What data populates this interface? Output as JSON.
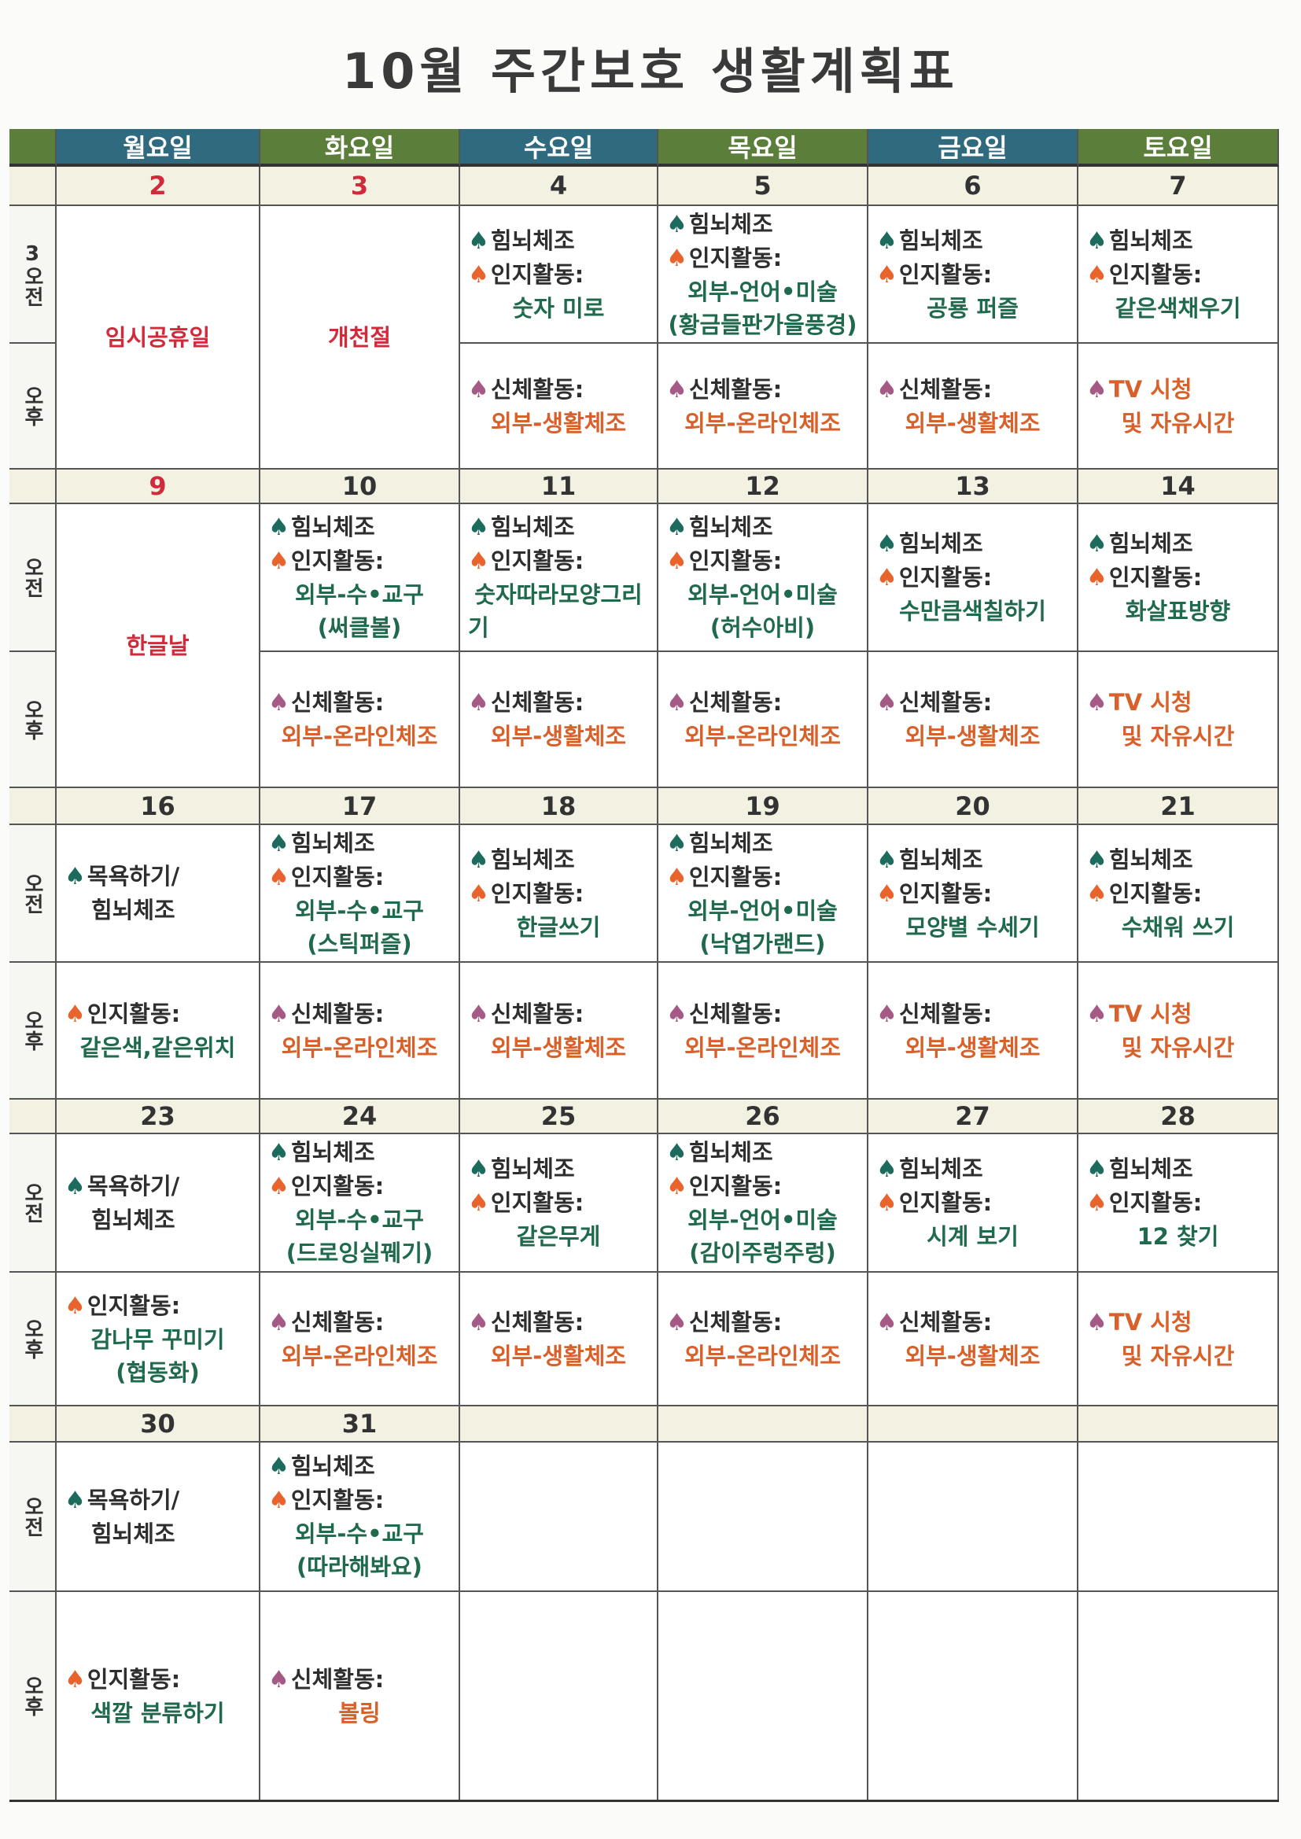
{
  "title": "10월 주간보호 생활계획표",
  "days": [
    {
      "label": "월요일",
      "color": "#2f6a7e"
    },
    {
      "label": "화요일",
      "color": "#5b7e3a"
    },
    {
      "label": "수요일",
      "color": "#2f6a7e"
    },
    {
      "label": "목요일",
      "color": "#5b7e3a"
    },
    {
      "label": "금요일",
      "color": "#2f6a7e"
    },
    {
      "label": "토요일",
      "color": "#5b7e3a"
    }
  ],
  "colors": {
    "header_blue": "#2f6a7e",
    "header_green": "#5b7e3a",
    "date_bg": "#f3f2e2",
    "content_green": "#1f6a4c",
    "content_orange": "#d8602a",
    "holiday_red": "#d12a3a"
  },
  "weeks": [
    {
      "am_label": "3오전",
      "pm_label": "오후",
      "dates": [
        {
          "n": "2",
          "red": true
        },
        {
          "n": "3",
          "red": true
        },
        {
          "n": "4"
        },
        {
          "n": "5"
        },
        {
          "n": "6"
        },
        {
          "n": "7"
        }
      ],
      "holidays": [
        {
          "day": 0,
          "text": "임시공휴일"
        },
        {
          "day": 1,
          "text": "개천절"
        }
      ],
      "am": [
        null,
        null,
        [
          {
            "i": "teal",
            "t": "힘뇌체조",
            "c": "k"
          },
          {
            "i": "orange",
            "t": "인지활동:",
            "c": "k"
          },
          {
            "t": "숫자 미로",
            "c": "g"
          }
        ],
        [
          {
            "i": "teal",
            "t": "힘뇌체조",
            "c": "k"
          },
          {
            "i": "orange",
            "t": "인지활동:",
            "c": "k"
          },
          {
            "t": "외부-언어•미술",
            "c": "g"
          },
          {
            "t": "(황금들판가을풍경)",
            "c": "g"
          }
        ],
        [
          {
            "i": "teal",
            "t": "힘뇌체조",
            "c": "k"
          },
          {
            "i": "orange",
            "t": "인지활동:",
            "c": "k"
          },
          {
            "t": "공룡 퍼즐",
            "c": "g"
          }
        ],
        [
          {
            "i": "teal",
            "t": "힘뇌체조",
            "c": "k"
          },
          {
            "i": "orange",
            "t": "인지활동:",
            "c": "k"
          },
          {
            "t": "같은색채우기",
            "c": "g"
          }
        ]
      ],
      "pm": [
        null,
        null,
        [
          {
            "i": "mauve",
            "t": "신체활동:",
            "c": "k"
          },
          {
            "t": "외부-생활체조",
            "c": "o"
          }
        ],
        [
          {
            "i": "mauve",
            "t": "신체활동:",
            "c": "k"
          },
          {
            "t": "외부-온라인체조",
            "c": "o"
          }
        ],
        [
          {
            "i": "mauve",
            "t": "신체활동:",
            "c": "k"
          },
          {
            "t": "외부-생활체조",
            "c": "o"
          }
        ],
        [
          {
            "i": "mauve",
            "t": "TV 시청",
            "c": "o"
          },
          {
            "t": "및 자유시간",
            "c": "o"
          }
        ]
      ]
    },
    {
      "am_label": "오전",
      "pm_label": "오후",
      "dates": [
        {
          "n": "9",
          "red": true
        },
        {
          "n": "10"
        },
        {
          "n": "11"
        },
        {
          "n": "12"
        },
        {
          "n": "13"
        },
        {
          "n": "14"
        }
      ],
      "holidays": [
        {
          "day": 0,
          "text": "한글날"
        }
      ],
      "am": [
        null,
        [
          {
            "i": "teal",
            "t": "힘뇌체조",
            "c": "k"
          },
          {
            "i": "orange",
            "t": "인지활동:",
            "c": "k"
          },
          {
            "t": "외부-수•교구",
            "c": "g"
          },
          {
            "t": "(써클볼)",
            "c": "g"
          }
        ],
        [
          {
            "i": "teal",
            "t": "힘뇌체조",
            "c": "k"
          },
          {
            "i": "orange",
            "t": "인지활동:",
            "c": "k"
          },
          {
            "t": "숫자따라모양그리",
            "c": "g"
          },
          {
            "t": "기",
            "c": "g",
            "left": true
          }
        ],
        [
          {
            "i": "teal",
            "t": "힘뇌체조",
            "c": "k"
          },
          {
            "i": "orange",
            "t": "인지활동:",
            "c": "k"
          },
          {
            "t": "외부-언어•미술",
            "c": "g"
          },
          {
            "t": "(허수아비)",
            "c": "g"
          }
        ],
        [
          {
            "i": "teal",
            "t": "힘뇌체조",
            "c": "k"
          },
          {
            "i": "orange",
            "t": "인지활동:",
            "c": "k"
          },
          {
            "t": "수만큼색칠하기",
            "c": "g"
          }
        ],
        [
          {
            "i": "teal",
            "t": "힘뇌체조",
            "c": "k"
          },
          {
            "i": "orange",
            "t": "인지활동:",
            "c": "k"
          },
          {
            "t": "화살표방향",
            "c": "g"
          }
        ]
      ],
      "pm": [
        null,
        [
          {
            "i": "mauve",
            "t": "신체활동:",
            "c": "k"
          },
          {
            "t": "외부-온라인체조",
            "c": "o"
          }
        ],
        [
          {
            "i": "mauve",
            "t": "신체활동:",
            "c": "k"
          },
          {
            "t": "외부-생활체조",
            "c": "o"
          }
        ],
        [
          {
            "i": "mauve",
            "t": "신체활동:",
            "c": "k"
          },
          {
            "t": "외부-온라인체조",
            "c": "o"
          }
        ],
        [
          {
            "i": "mauve",
            "t": "신체활동:",
            "c": "k"
          },
          {
            "t": "외부-생활체조",
            "c": "o"
          }
        ],
        [
          {
            "i": "mauve",
            "t": "TV 시청",
            "c": "o"
          },
          {
            "t": "및 자유시간",
            "c": "o"
          }
        ]
      ]
    },
    {
      "am_label": "오전",
      "pm_label": "오후",
      "dates": [
        {
          "n": "16"
        },
        {
          "n": "17"
        },
        {
          "n": "18"
        },
        {
          "n": "19"
        },
        {
          "n": "20"
        },
        {
          "n": "21"
        }
      ],
      "holidays": [],
      "am": [
        [
          {
            "i": "teal",
            "t": "목욕하기/",
            "c": "k"
          },
          {
            "t": "힘뇌체조",
            "c": "k"
          }
        ],
        [
          {
            "i": "teal",
            "t": "힘뇌체조",
            "c": "k"
          },
          {
            "i": "orange",
            "t": "인지활동:",
            "c": "k"
          },
          {
            "t": "외부-수•교구",
            "c": "g"
          },
          {
            "t": "(스틱퍼즐)",
            "c": "g"
          }
        ],
        [
          {
            "i": "teal",
            "t": "힘뇌체조",
            "c": "k"
          },
          {
            "i": "orange",
            "t": "인지활동:",
            "c": "k"
          },
          {
            "t": "한글쓰기",
            "c": "g"
          }
        ],
        [
          {
            "i": "teal",
            "t": "힘뇌체조",
            "c": "k"
          },
          {
            "i": "orange",
            "t": "인지활동:",
            "c": "k"
          },
          {
            "t": "외부-언어•미술",
            "c": "g"
          },
          {
            "t": "(낙엽가랜드)",
            "c": "g"
          }
        ],
        [
          {
            "i": "teal",
            "t": "힘뇌체조",
            "c": "k"
          },
          {
            "i": "orange",
            "t": "인지활동:",
            "c": "k"
          },
          {
            "t": "모양별 수세기",
            "c": "g"
          }
        ],
        [
          {
            "i": "teal",
            "t": "힘뇌체조",
            "c": "k"
          },
          {
            "i": "orange",
            "t": "인지활동:",
            "c": "k"
          },
          {
            "t": "수채워 쓰기",
            "c": "g"
          }
        ]
      ],
      "pm": [
        [
          {
            "i": "orange",
            "t": "인지활동:",
            "c": "k"
          },
          {
            "t": "같은색,같은위치",
            "c": "g"
          }
        ],
        [
          {
            "i": "mauve",
            "t": "신체활동:",
            "c": "k"
          },
          {
            "t": "외부-온라인체조",
            "c": "o"
          }
        ],
        [
          {
            "i": "mauve",
            "t": "신체활동:",
            "c": "k"
          },
          {
            "t": "외부-생활체조",
            "c": "o"
          }
        ],
        [
          {
            "i": "mauve",
            "t": "신체활동:",
            "c": "k"
          },
          {
            "t": "외부-온라인체조",
            "c": "o"
          }
        ],
        [
          {
            "i": "mauve",
            "t": "신체활동:",
            "c": "k"
          },
          {
            "t": "외부-생활체조",
            "c": "o"
          }
        ],
        [
          {
            "i": "mauve",
            "t": "TV 시청",
            "c": "o"
          },
          {
            "t": "및 자유시간",
            "c": "o"
          }
        ]
      ]
    },
    {
      "am_label": "오전",
      "pm_label": "오후",
      "dates": [
        {
          "n": "23"
        },
        {
          "n": "24"
        },
        {
          "n": "25"
        },
        {
          "n": "26"
        },
        {
          "n": "27"
        },
        {
          "n": "28"
        }
      ],
      "holidays": [],
      "am": [
        [
          {
            "i": "teal",
            "t": "목욕하기/",
            "c": "k"
          },
          {
            "t": "힘뇌체조",
            "c": "k"
          }
        ],
        [
          {
            "i": "teal",
            "t": "힘뇌체조",
            "c": "k"
          },
          {
            "i": "orange",
            "t": "인지활동:",
            "c": "k"
          },
          {
            "t": "외부-수•교구",
            "c": "g"
          },
          {
            "t": "(드로잉실꿰기)",
            "c": "g"
          }
        ],
        [
          {
            "i": "teal",
            "t": "힘뇌체조",
            "c": "k"
          },
          {
            "i": "orange",
            "t": "인지활동:",
            "c": "k"
          },
          {
            "t": "같은무게",
            "c": "g"
          }
        ],
        [
          {
            "i": "teal",
            "t": "힘뇌체조",
            "c": "k"
          },
          {
            "i": "orange",
            "t": "인지활동:",
            "c": "k"
          },
          {
            "t": "외부-언어•미술",
            "c": "g"
          },
          {
            "t": "(감이주렁주렁)",
            "c": "g"
          }
        ],
        [
          {
            "i": "teal",
            "t": "힘뇌체조",
            "c": "k"
          },
          {
            "i": "orange",
            "t": "인지활동:",
            "c": "k"
          },
          {
            "t": "시계 보기",
            "c": "g"
          }
        ],
        [
          {
            "i": "teal",
            "t": "힘뇌체조",
            "c": "k"
          },
          {
            "i": "orange",
            "t": "인지활동:",
            "c": "k"
          },
          {
            "t": "12 찾기",
            "c": "g"
          }
        ]
      ],
      "pm": [
        [
          {
            "i": "orange",
            "t": "인지활동:",
            "c": "k"
          },
          {
            "t": "감나무 꾸미기",
            "c": "g"
          },
          {
            "t": "(협동화)",
            "c": "g"
          }
        ],
        [
          {
            "i": "mauve",
            "t": "신체활동:",
            "c": "k"
          },
          {
            "t": "외부-온라인체조",
            "c": "o"
          }
        ],
        [
          {
            "i": "mauve",
            "t": "신체활동:",
            "c": "k"
          },
          {
            "t": "외부-생활체조",
            "c": "o"
          }
        ],
        [
          {
            "i": "mauve",
            "t": "신체활동:",
            "c": "k"
          },
          {
            "t": "외부-온라인체조",
            "c": "o"
          }
        ],
        [
          {
            "i": "mauve",
            "t": "신체활동:",
            "c": "k"
          },
          {
            "t": "외부-생활체조",
            "c": "o"
          }
        ],
        [
          {
            "i": "mauve",
            "t": "TV 시청",
            "c": "o"
          },
          {
            "t": "및 자유시간",
            "c": "o"
          }
        ]
      ]
    },
    {
      "am_label": "오전",
      "pm_label": "오후",
      "dates": [
        {
          "n": "30"
        },
        {
          "n": "31"
        },
        {
          "n": ""
        },
        {
          "n": ""
        },
        {
          "n": ""
        },
        {
          "n": ""
        }
      ],
      "holidays": [],
      "am": [
        [
          {
            "i": "teal",
            "t": "목욕하기/",
            "c": "k"
          },
          {
            "t": "힘뇌체조",
            "c": "k"
          }
        ],
        [
          {
            "i": "teal",
            "t": "힘뇌체조",
            "c": "k"
          },
          {
            "i": "orange",
            "t": "인지활동:",
            "c": "k"
          },
          {
            "t": "외부-수•교구",
            "c": "g"
          },
          {
            "t": "(따라해봐요)",
            "c": "g"
          }
        ],
        null,
        null,
        null,
        null
      ],
      "pm": [
        [
          {
            "i": "orange",
            "t": "인지활동:",
            "c": "k"
          },
          {
            "t": "색깔 분류하기",
            "c": "g"
          }
        ],
        [
          {
            "i": "mauve",
            "t": "신체활동:",
            "c": "k"
          },
          {
            "t": "볼링",
            "c": "o"
          }
        ],
        null,
        null,
        null,
        null
      ]
    }
  ]
}
